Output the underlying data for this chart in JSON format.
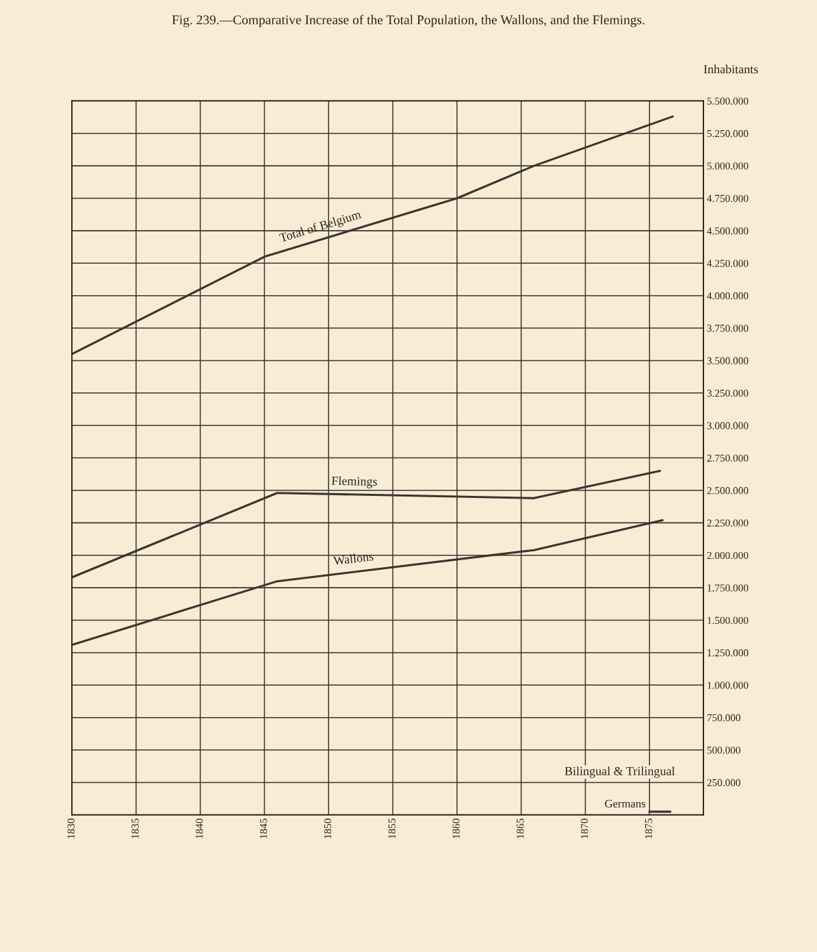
{
  "chart_data": {
    "type": "line",
    "title": "Fig. 239.—Comparative Increase of the Total Population, the Wallons, and the Flemings.",
    "ylabel": "Inhabitants",
    "series": [
      {
        "name": "Total of Belgium",
        "color": "#3a3530",
        "x": [
          1830,
          1845,
          1860,
          1866,
          1876.8
        ],
        "values": [
          3550000,
          4300000,
          4750000,
          5000000,
          5380000
        ]
      },
      {
        "name": "Flemings",
        "color": "#3a3530",
        "x": [
          1830,
          1846,
          1866,
          1875.8
        ],
        "values": [
          1830000,
          2480000,
          2440000,
          2650000
        ]
      },
      {
        "name": "Wallons",
        "color": "#3a3530",
        "x": [
          1830,
          1846,
          1866,
          1876
        ],
        "values": [
          1310000,
          1800000,
          2040000,
          2270000
        ]
      },
      {
        "name": "Germans",
        "color": "#3a3530",
        "x": [
          1875,
          1876.6
        ],
        "values": [
          25000,
          25000
        ]
      }
    ],
    "annotations": [
      "Bilingual & Trilingual"
    ],
    "xlim": [
      1830,
      1879.2
    ],
    "xticks": [
      1830,
      1835,
      1840,
      1845,
      1850,
      1855,
      1860,
      1865,
      1870,
      1875
    ],
    "ylim": [
      0,
      5500000
    ],
    "yticks": [
      {
        "value": 0,
        "label": null
      },
      {
        "value": 250000,
        "label": "250.000"
      },
      {
        "value": 500000,
        "label": "500.000"
      },
      {
        "value": 750000,
        "label": "750.000"
      },
      {
        "value": 1000000,
        "label": "1.000.000"
      },
      {
        "value": 1250000,
        "label": "1.250.000"
      },
      {
        "value": 1500000,
        "label": "1.500.000"
      },
      {
        "value": 1750000,
        "label": "1.750.000"
      },
      {
        "value": 2000000,
        "label": "2.000.000"
      },
      {
        "value": 2250000,
        "label": "2.250.000"
      },
      {
        "value": 2500000,
        "label": "2.500.000"
      },
      {
        "value": 2750000,
        "label": "2.750.000"
      },
      {
        "value": 3000000,
        "label": "3.000.000"
      },
      {
        "value": 3250000,
        "label": "3.250.000"
      },
      {
        "value": 3500000,
        "label": "3.500.000"
      },
      {
        "value": 3750000,
        "label": "3.750.000"
      },
      {
        "value": 4000000,
        "label": "4.000.000"
      },
      {
        "value": 4250000,
        "label": "4.250.000"
      },
      {
        "value": 4500000,
        "label": "4.500.000"
      },
      {
        "value": 4750000,
        "label": "4.750.000"
      },
      {
        "value": 5000000,
        "label": "5.000.000"
      },
      {
        "value": 5250000,
        "label": "5.250.000"
      },
      {
        "value": 5500000,
        "label": "5.500.000"
      }
    ],
    "grid": true,
    "legend": false,
    "marker": "none",
    "line_style": "solid"
  }
}
